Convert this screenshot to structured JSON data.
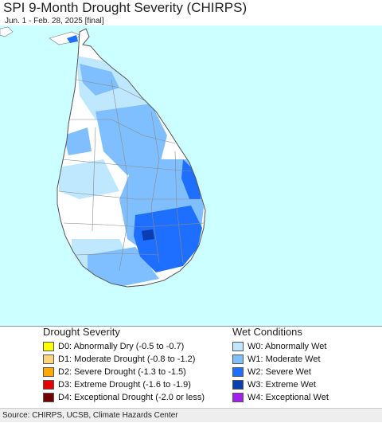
{
  "map": {
    "title": "SPI 9-Month Drought Severity (CHIRPS)",
    "subtitle": "Jun. 1 - Feb. 28, 2025 [final]",
    "colors": {
      "ocean": "#ccffff",
      "land": "#ffffff",
      "w0": "#bfe8ff",
      "w1": "#7fbfff",
      "w2": "#1e6fff",
      "w3": "#0a3db0",
      "border": "#888888"
    }
  },
  "legend": {
    "drought": {
      "heading": "Drought Severity",
      "items": [
        {
          "label": "D0: Abnormally Dry (-0.5 to -0.7)",
          "color": "#ffff00"
        },
        {
          "label": "D1: Moderate Drought (-0.8 to -1.2)",
          "color": "#fcd37f"
        },
        {
          "label": "D2: Severe Drought (-1.3 to -1.5)",
          "color": "#ffaa00"
        },
        {
          "label": "D3: Extreme Drought (-1.6 to -1.9)",
          "color": "#e60000"
        },
        {
          "label": "D4: Exceptional Drought (-2.0 or less)",
          "color": "#730000"
        }
      ]
    },
    "wet": {
      "heading": "Wet Conditions",
      "items": [
        {
          "label": "W0: Abnormally Wet",
          "color": "#bfe8ff"
        },
        {
          "label": "W1: Moderate Wet",
          "color": "#7fbfff"
        },
        {
          "label": "W2: Severe Wet",
          "color": "#1e6fff"
        },
        {
          "label": "W3: Extreme Wet",
          "color": "#0a3db0"
        },
        {
          "label": "W4: Exceptional Wet",
          "color": "#a020f0"
        }
      ]
    }
  },
  "footer": {
    "source": "Source: CHIRPS, UCSB, Climate Hazards Center"
  }
}
